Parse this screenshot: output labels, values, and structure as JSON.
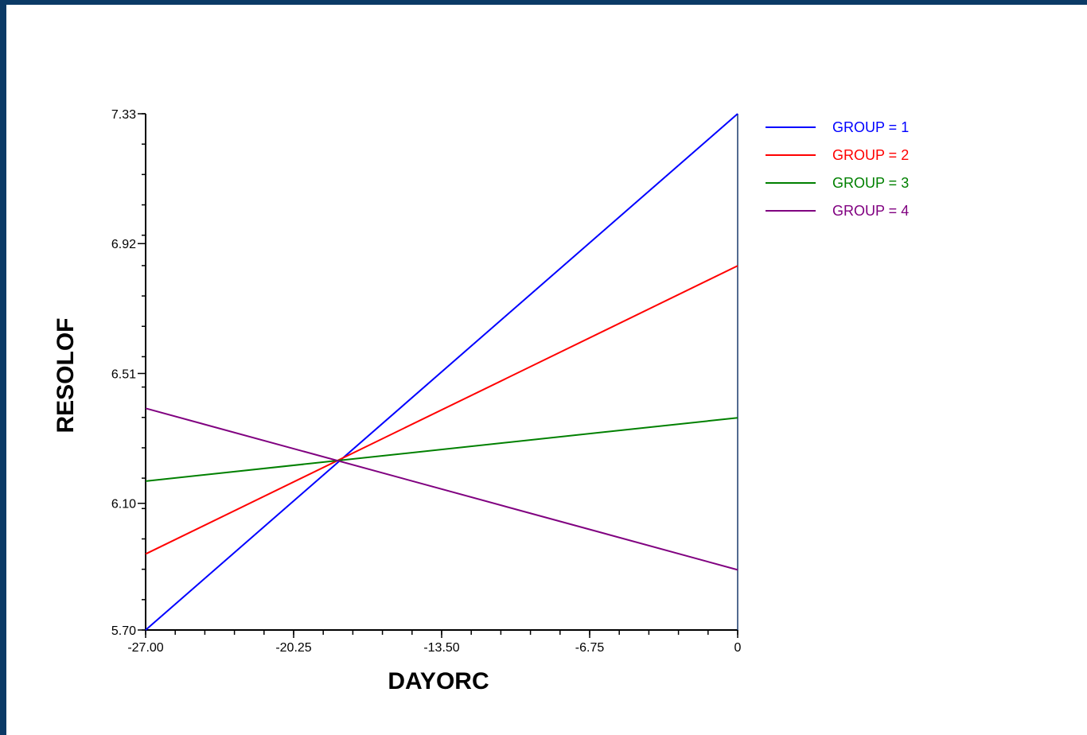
{
  "chart_data": {
    "type": "line",
    "xlabel": "DAYORC",
    "ylabel": "RESOLOF",
    "xlim": [
      -27.0,
      0
    ],
    "ylim": [
      5.7,
      7.33
    ],
    "x_ticks": [
      -27.0,
      -20.25,
      -13.5,
      -6.75,
      0
    ],
    "x_tick_labels": [
      "-27.00",
      "-20.25",
      "-13.50",
      "-6.75",
      "0"
    ],
    "y_ticks": [
      5.7,
      6.1,
      6.51,
      6.92,
      7.33
    ],
    "y_tick_labels": [
      "5.70",
      "6.10",
      "6.51",
      "6.92",
      "7.33"
    ],
    "grid": false,
    "legend_position": "top-right",
    "series": [
      {
        "name": "GROUP = 1",
        "color": "#0000ff",
        "x": [
          -27.0,
          0
        ],
        "y": [
          5.7,
          7.33
        ]
      },
      {
        "name": "GROUP = 2",
        "color": "#ff0000",
        "x": [
          -27.0,
          0
        ],
        "y": [
          5.94,
          6.85
        ]
      },
      {
        "name": "GROUP = 3",
        "color": "#008000",
        "x": [
          -27.0,
          0
        ],
        "y": [
          6.17,
          6.37
        ]
      },
      {
        "name": "GROUP = 4",
        "color": "#800080",
        "x": [
          -27.0,
          0
        ],
        "y": [
          6.4,
          5.89
        ]
      }
    ]
  }
}
